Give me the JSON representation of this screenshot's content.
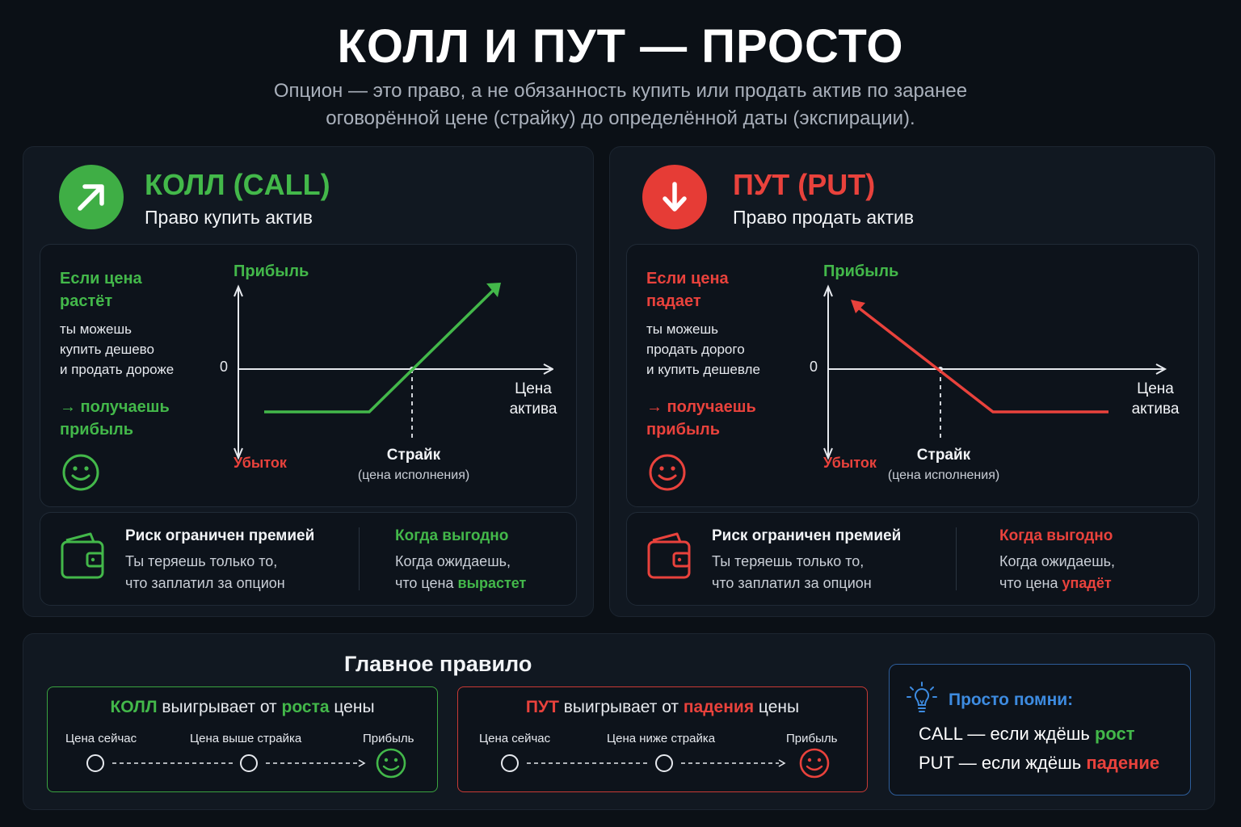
{
  "header": {
    "title": "КОЛЛ И ПУТ — ПРОСТО",
    "subtitle_line1": "Опцион — это право, а не обязанность купить или продать актив по заранее",
    "subtitle_line2": "оговорённой цене (страйку) до определённой даты (экспирации)."
  },
  "colors": {
    "green": "#43b84a",
    "red": "#e9423c",
    "blue": "#3d8be0",
    "background": "#0b1016"
  },
  "call": {
    "icon": "arrow-up-right-icon",
    "title": "КОЛЛ (CALL)",
    "subtitle": "Право купить актив",
    "lead_line1": "Если цена",
    "lead_line2": "растёт",
    "desc_line1": "ты можешь",
    "desc_line2": "купить дешево",
    "desc_line3": "и продать дороже",
    "gain_line1": "→ получаешь",
    "gain_line2": "прибыль",
    "smile_icon": "smiley-icon",
    "chart": {
      "profit_label": "Прибыль",
      "loss_label": "Убыток",
      "zero_label": "0",
      "x_label_line1": "Цена",
      "x_label_line2": "актива",
      "strike_label": "Страйк",
      "strike_note": "(цена исполнения)"
    },
    "risk_title": "Риск ограничен премией",
    "risk_line1": "Ты теряешь только то,",
    "risk_line2": "что заплатил за опцион",
    "when_title": "Когда выгодно",
    "when_line1": "Когда ожидаешь,",
    "when_line2_prefix": "что цена ",
    "when_line2_accent": "вырастет",
    "wallet_icon": "wallet-icon"
  },
  "put": {
    "icon": "arrow-down-icon",
    "title": "ПУТ (PUT)",
    "subtitle": "Право продать актив",
    "lead_line1": "Если цена",
    "lead_line2": "падает",
    "desc_line1": "ты можешь",
    "desc_line2": "продать дорого",
    "desc_line3": "и купить дешевле",
    "gain_line1": "→ получаешь",
    "gain_line2": "прибыль",
    "smile_icon": "smiley-icon",
    "chart": {
      "profit_label": "Прибыль",
      "loss_label": "Убыток",
      "zero_label": "0",
      "x_label_line1": "Цена",
      "x_label_line2": "актива",
      "strike_label": "Страйк",
      "strike_note": "(цена исполнения)"
    },
    "risk_title": "Риск ограничен премией",
    "risk_line1": "Ты теряешь только то,",
    "risk_line2": "что заплатил за опцион",
    "when_title": "Когда выгодно",
    "when_line1": "Когда ожидаешь,",
    "when_line2_prefix": "что цена ",
    "when_line2_accent": "упадёт",
    "wallet_icon": "wallet-icon"
  },
  "rule": {
    "title": "Главное правило",
    "call_box": {
      "word1": "КОЛЛ",
      "word2": " выигрывает от ",
      "word3": "роста",
      "word4": " цены",
      "step1": "Цена сейчас",
      "step2": "Цена выше страйка",
      "step3": "Прибыль"
    },
    "put_box": {
      "word1": "ПУТ",
      "word2": " выигрывает от ",
      "word3": "падения",
      "word4": " цены",
      "step1": "Цена сейчас",
      "step2": "Цена ниже страйка",
      "step3": "Прибыль"
    }
  },
  "remember": {
    "icon": "lightbulb-icon",
    "title": "Просто помни:",
    "call_key": "CALL",
    "call_text": " — если ждёшь ",
    "call_accent": "рост",
    "put_key": "PUT",
    "put_text": " — если ждёшь ",
    "put_accent": "падение"
  }
}
